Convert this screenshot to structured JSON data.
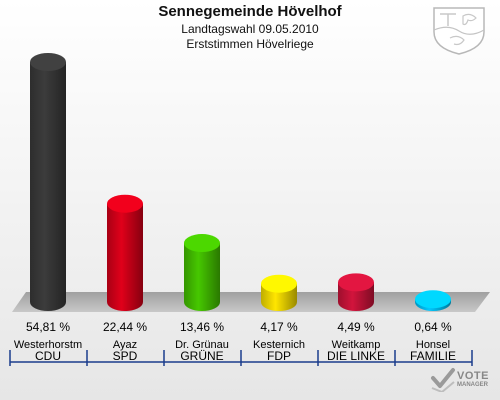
{
  "header": {
    "title": "Sennegemeinde Hövelhof",
    "subtitle1": "Landtagswahl 09.05.2010",
    "subtitle2": "Erststimmen Hövelriege"
  },
  "chart_data": {
    "type": "bar",
    "title": "Sennegemeinde Hövelhof",
    "categories": [
      "CDU",
      "SPD",
      "GRÜNE",
      "FDP",
      "DIE LINKE",
      "FAMILIE"
    ],
    "candidates": [
      "Westerhorstm",
      "Ayaz",
      "Dr. Grünau",
      "Kesternich",
      "Weitkamp",
      "Honsel"
    ],
    "values": [
      54.81,
      22.44,
      13.46,
      4.17,
      4.49,
      0.64
    ],
    "value_labels": [
      "54,81 %",
      "22,44 %",
      "13,46 %",
      "4,17 %",
      "4,49 %",
      "0,64 %"
    ],
    "colors": [
      "#3c3c3c",
      "#e0001a",
      "#46c800",
      "#ffe600",
      "#d2143c",
      "#00c8ff"
    ],
    "grid": false,
    "legend": "none"
  },
  "branding": {
    "logo_text": "VOTE",
    "logo_subtext": "MANAGER",
    "logo_icon": "checkmark-ballot-icon"
  },
  "crest_icon": "nrw-coat-of-arms-icon"
}
